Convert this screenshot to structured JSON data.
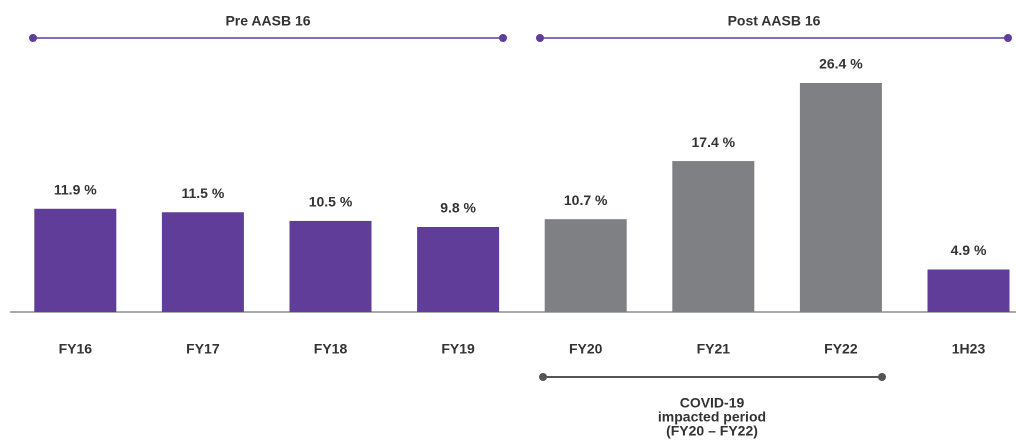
{
  "chart_data": {
    "type": "bar",
    "categories": [
      "FY16",
      "FY17",
      "FY18",
      "FY19",
      "FY20",
      "FY21",
      "FY22",
      "1H23"
    ],
    "values": [
      11.9,
      11.5,
      10.5,
      9.8,
      10.7,
      17.4,
      26.4,
      4.9
    ],
    "value_labels": [
      "11.9 %",
      "11.5 %",
      "10.5 %",
      "9.8 %",
      "10.7 %",
      "17.4 %",
      "26.4 %",
      "4.9 %"
    ],
    "colors": [
      "#5f3d99",
      "#5f3d99",
      "#5f3d99",
      "#5f3d99",
      "#7f8083",
      "#7f8083",
      "#7f8083",
      "#5f3d99"
    ],
    "annotations": {
      "pre": "Pre AASB 16",
      "post": "Post AASB 16",
      "covid": [
        "COVID-19",
        "impacted period",
        "(FY20 – FY22)"
      ]
    }
  }
}
